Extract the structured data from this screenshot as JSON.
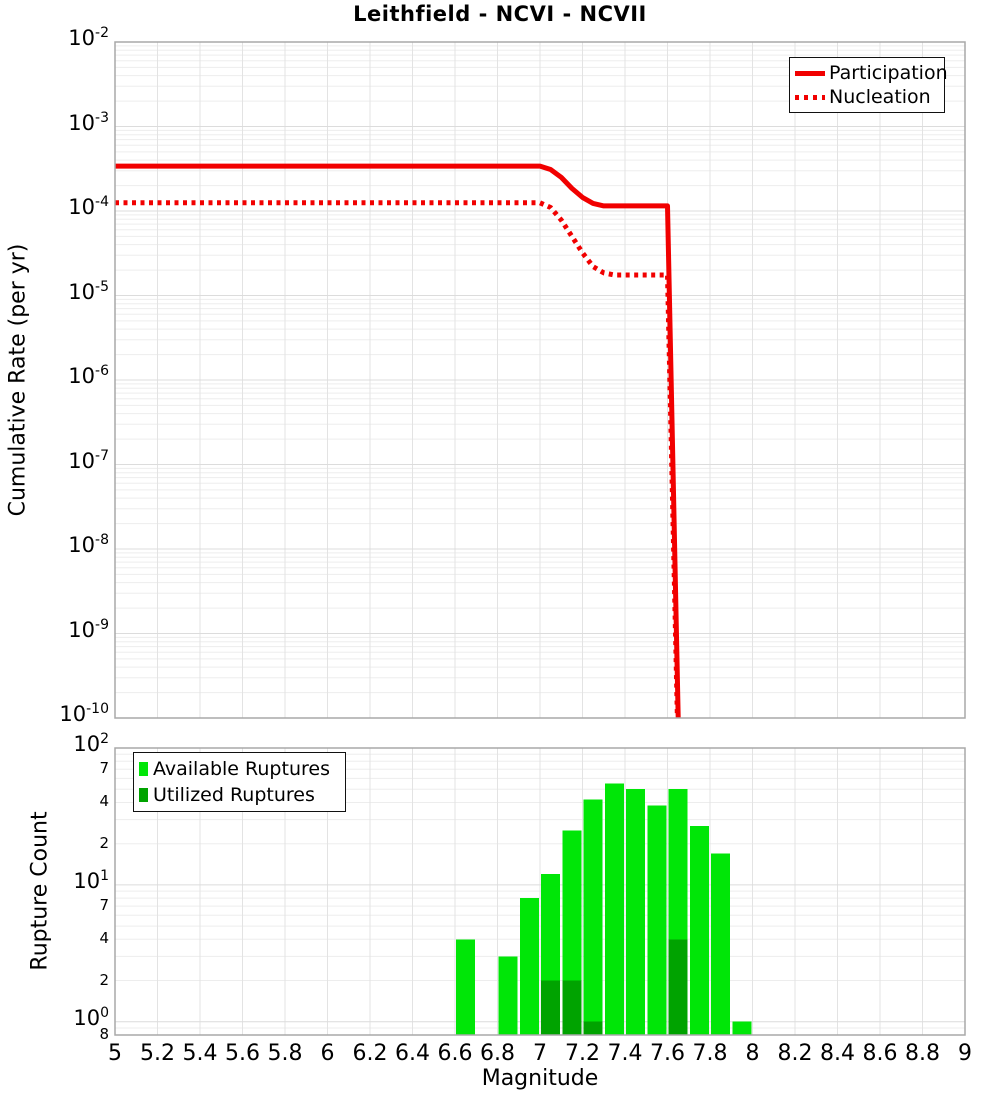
{
  "title": "Leithfield - NCVI - NCVII",
  "styles": {
    "background": "#ffffff",
    "grid_major": "#dcdcdc",
    "grid_minor": "#ededed",
    "grid_vertical": "#e3e3e3",
    "spine": "#a8a8a8",
    "text_color": "#000000"
  },
  "chart_data": [
    {
      "id": "cumulative-rate",
      "type": "line",
      "title": "Leithfield - NCVI - NCVII",
      "xlabel": "",
      "ylabel": "Cumulative Rate (per yr)",
      "xlim": [
        5,
        9
      ],
      "ylim": [
        1e-10,
        0.01
      ],
      "grid": true,
      "legend_position": "top-right",
      "x_ticks": [
        5,
        5.2,
        5.4,
        5.6,
        5.8,
        6,
        6.2,
        6.4,
        6.6,
        6.8,
        7,
        7.2,
        7.4,
        7.6,
        7.8,
        8,
        8.2,
        8.4,
        8.6,
        8.8,
        9
      ],
      "y_major_tick_exponents": [
        -2,
        -3,
        -4,
        -5,
        -6,
        -7,
        -8,
        -9,
        -10
      ],
      "legend": [
        {
          "label": "Participation",
          "style": "solid",
          "color": "#f10000"
        },
        {
          "label": "Nucleation",
          "style": "dotted",
          "color": "#f10000"
        }
      ],
      "series": [
        {
          "name": "Participation",
          "color": "#f10000",
          "style": "solid",
          "line_width": 5,
          "points": [
            [
              5.0,
              0.00034
            ],
            [
              7.0,
              0.00034
            ],
            [
              7.05,
              0.00031
            ],
            [
              7.1,
              0.00025
            ],
            [
              7.15,
              0.000185
            ],
            [
              7.2,
              0.000145
            ],
            [
              7.25,
              0.000123
            ],
            [
              7.3,
              0.000115
            ],
            [
              7.6,
              0.000115
            ],
            [
              7.7,
              1e-16
            ]
          ]
        },
        {
          "name": "Nucleation",
          "color": "#f10000",
          "style": "dotted",
          "line_width": 5,
          "points": [
            [
              5.0,
              0.000125
            ],
            [
              7.0,
              0.000125
            ],
            [
              7.05,
              0.00011
            ],
            [
              7.1,
              7.8e-05
            ],
            [
              7.15,
              5e-05
            ],
            [
              7.2,
              3.2e-05
            ],
            [
              7.25,
              2.2e-05
            ],
            [
              7.3,
              1.85e-05
            ],
            [
              7.35,
              1.75e-05
            ],
            [
              7.6,
              1.75e-05
            ],
            [
              7.7,
              1e-16
            ]
          ]
        }
      ]
    },
    {
      "id": "rupture-count",
      "type": "bar",
      "xlabel": "Magnitude",
      "ylabel": "Rupture Count",
      "xlim": [
        5,
        9
      ],
      "ylim": [
        0.8,
        100
      ],
      "grid": true,
      "legend_position": "top-left",
      "bin_width": 0.1,
      "x_ticks": [
        5,
        5.2,
        5.4,
        5.6,
        5.8,
        6,
        6.2,
        6.4,
        6.6,
        6.8,
        7,
        7.2,
        7.4,
        7.6,
        7.8,
        8,
        8.2,
        8.4,
        8.6,
        8.8,
        9
      ],
      "x_tick_labels": [
        "5",
        "5.2",
        "5.4",
        "5.6",
        "5.8",
        "6",
        "6.2",
        "6.4",
        "6.6",
        "6.8",
        "7",
        "7.2",
        "7.4",
        "7.6",
        "7.8",
        "8",
        "8.2",
        "8.4",
        "8.6",
        "8.8",
        "9"
      ],
      "y_major_tick_exponents": [
        2,
        1,
        0
      ],
      "y_minor_ticks": [
        {
          "value": 70,
          "label": "7"
        },
        {
          "value": 40,
          "label": "4"
        },
        {
          "value": 20,
          "label": "2"
        },
        {
          "value": 7,
          "label": "7"
        },
        {
          "value": 4,
          "label": "4"
        },
        {
          "value": 2,
          "label": "2"
        },
        {
          "value": 0.8,
          "label": "8"
        }
      ],
      "legend": [
        {
          "label": "Available Ruptures",
          "color": "#00e607"
        },
        {
          "label": "Utilized Ruptures",
          "color": "#00a300"
        }
      ],
      "series": [
        {
          "name": "Available Ruptures",
          "color": "#00e607",
          "bins": [
            {
              "x": 6.65,
              "count": 4
            },
            {
              "x": 6.85,
              "count": 3
            },
            {
              "x": 6.95,
              "count": 8
            },
            {
              "x": 7.05,
              "count": 12
            },
            {
              "x": 7.15,
              "count": 25
            },
            {
              "x": 7.25,
              "count": 42
            },
            {
              "x": 7.35,
              "count": 55
            },
            {
              "x": 7.45,
              "count": 50
            },
            {
              "x": 7.55,
              "count": 38
            },
            {
              "x": 7.65,
              "count": 50
            },
            {
              "x": 7.75,
              "count": 27
            },
            {
              "x": 7.85,
              "count": 17
            },
            {
              "x": 7.95,
              "count": 1
            }
          ]
        },
        {
          "name": "Utilized Ruptures",
          "color": "#00a300",
          "bins": [
            {
              "x": 7.05,
              "count": 2
            },
            {
              "x": 7.15,
              "count": 2
            },
            {
              "x": 7.25,
              "count": 1
            },
            {
              "x": 7.65,
              "count": 4
            }
          ]
        }
      ]
    }
  ]
}
